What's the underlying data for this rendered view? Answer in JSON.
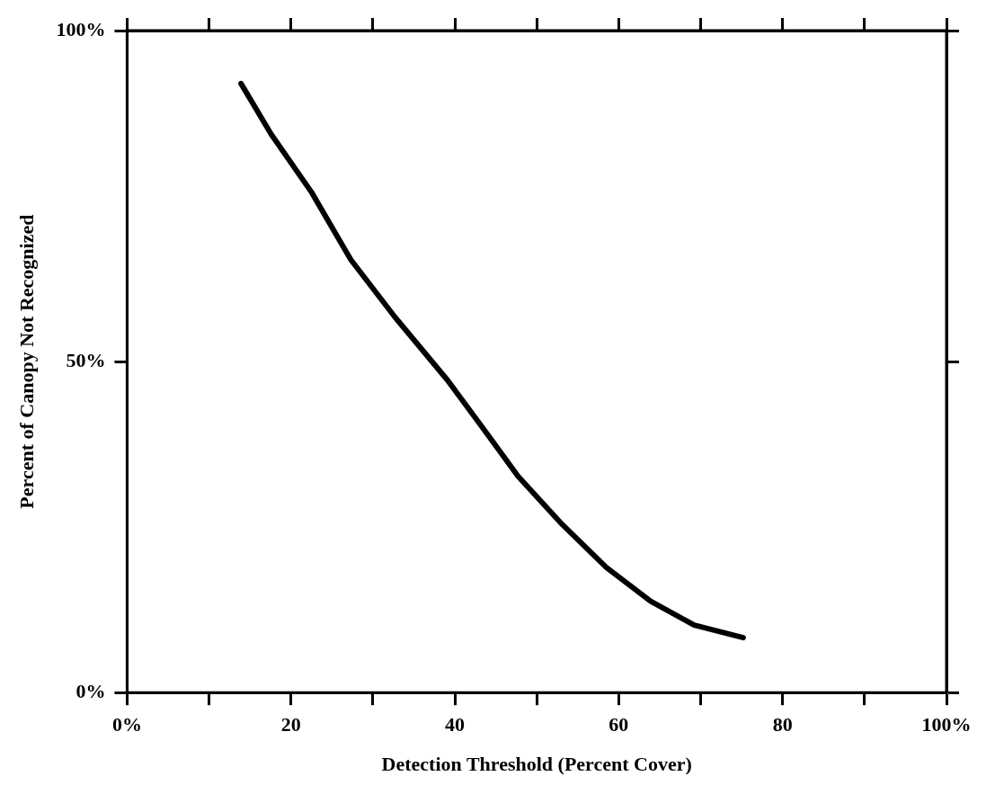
{
  "chart_data": {
    "type": "line",
    "xlabel": "Detection Threshold (Percent Cover)",
    "ylabel": "Percent of Canopy Not Recognized",
    "x": [
      13.9,
      17.6,
      22.5,
      27.3,
      32.7,
      39.1,
      43.4,
      47.7,
      53.1,
      58.5,
      63.9,
      69.2,
      75.2
    ],
    "series": [
      {
        "color": "#000000",
        "values": [
          92,
          84.3,
          75.6,
          65.4,
          56.7,
          47.2,
          40.0,
          32.7,
          25.4,
          18.9,
          13.8,
          10.2,
          8.3
        ]
      }
    ],
    "xlim": [
      0,
      100
    ],
    "ylim": [
      0,
      100
    ],
    "xticks": [
      {
        "value": 0,
        "label": "0%"
      },
      {
        "value": 10,
        "label": null
      },
      {
        "value": 20,
        "label": "20"
      },
      {
        "value": 30,
        "label": null
      },
      {
        "value": 40,
        "label": "40"
      },
      {
        "value": 50,
        "label": null
      },
      {
        "value": 60,
        "label": "60"
      },
      {
        "value": 70,
        "label": null
      },
      {
        "value": 80,
        "label": "80"
      },
      {
        "value": 90,
        "label": null
      },
      {
        "value": 100,
        "label": "100%"
      }
    ],
    "yticks": [
      {
        "value": 0,
        "label": "0%"
      },
      {
        "value": 50,
        "label": "50%"
      },
      {
        "value": 100,
        "label": "100%"
      }
    ],
    "grid": false,
    "legend": false,
    "marker": "none",
    "line_style": "solid"
  }
}
